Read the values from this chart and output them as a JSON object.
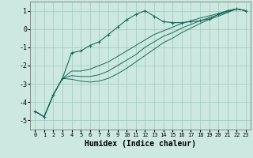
{
  "xlabel": "Humidex (Indice chaleur)",
  "bg_color": "#cce8e0",
  "grid_color": "#a0c8c0",
  "line_color": "#1a6b5a",
  "x": [
    0,
    1,
    2,
    3,
    4,
    5,
    6,
    7,
    8,
    9,
    10,
    11,
    12,
    13,
    14,
    15,
    16,
    17,
    18,
    19,
    20,
    21,
    22,
    23
  ],
  "line_marker": [
    -4.5,
    -4.8,
    -3.6,
    -2.7,
    -1.3,
    -1.2,
    -0.9,
    -0.7,
    -0.3,
    0.1,
    0.5,
    0.8,
    1.0,
    0.7,
    0.4,
    0.35,
    0.35,
    0.4,
    0.45,
    0.55,
    0.8,
    1.0,
    1.1,
    1.0
  ],
  "line_a": [
    -4.5,
    -4.8,
    -3.6,
    -2.7,
    -2.3,
    -2.3,
    -2.2,
    -2.0,
    -1.8,
    -1.5,
    -1.2,
    -0.9,
    -0.6,
    -0.3,
    -0.1,
    0.1,
    0.3,
    0.45,
    0.6,
    0.72,
    0.85,
    1.0,
    1.1,
    1.0
  ],
  "line_b": [
    -4.5,
    -4.8,
    -3.6,
    -2.7,
    -2.55,
    -2.6,
    -2.6,
    -2.5,
    -2.3,
    -2.0,
    -1.7,
    -1.4,
    -1.0,
    -0.7,
    -0.4,
    -0.2,
    0.05,
    0.25,
    0.45,
    0.62,
    0.78,
    0.95,
    1.1,
    1.0
  ],
  "line_c": [
    -4.5,
    -4.8,
    -3.6,
    -2.7,
    -2.75,
    -2.85,
    -2.9,
    -2.85,
    -2.7,
    -2.45,
    -2.15,
    -1.8,
    -1.45,
    -1.1,
    -0.75,
    -0.5,
    -0.2,
    0.05,
    0.3,
    0.52,
    0.7,
    0.9,
    1.1,
    1.0
  ],
  "xlim": [
    -0.5,
    23.5
  ],
  "ylim": [
    -5.5,
    1.5
  ],
  "yticks": [
    -5,
    -4,
    -3,
    -2,
    -1,
    0,
    1
  ]
}
